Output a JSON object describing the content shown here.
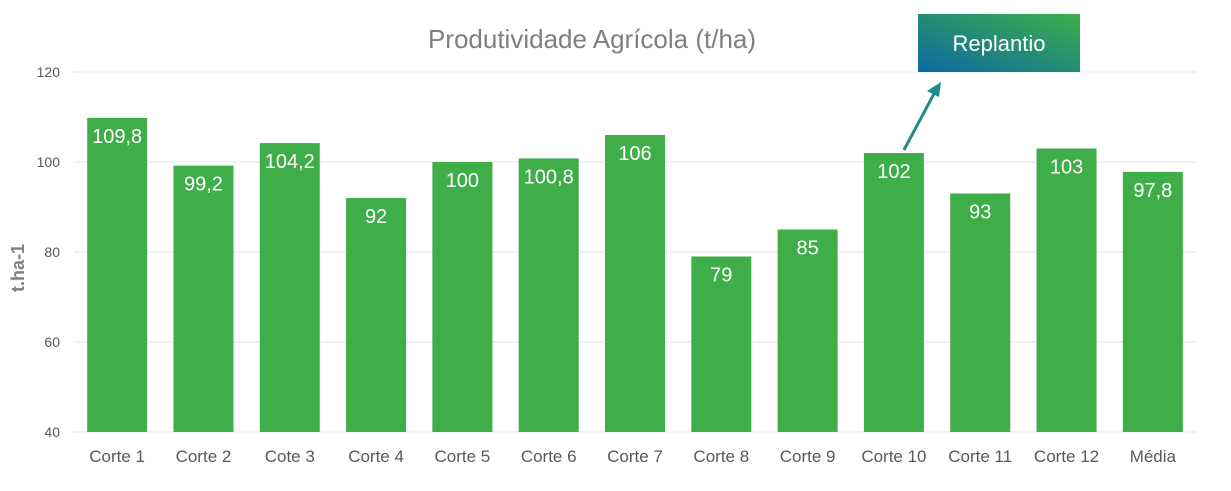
{
  "chart_data": {
    "type": "bar",
    "title": "Produtividade Agrícola (t/ha)",
    "xlabel": "",
    "ylabel": "t.ha-1",
    "ylim": [
      40,
      120
    ],
    "yticks": [
      40,
      60,
      80,
      100,
      120
    ],
    "grid": true,
    "legend": "none",
    "categories": [
      "Corte 1",
      "Corte 2",
      "Cote 3",
      "Corte 4",
      "Corte 5",
      "Corte 6",
      "Corte 7",
      "Corte 8",
      "Corte 9",
      "Corte 10",
      "Corte 11",
      "Corte 12",
      "Média"
    ],
    "values": [
      109.8,
      99.2,
      104.2,
      92,
      100,
      100.8,
      106,
      79,
      85,
      102,
      93,
      103,
      97.8
    ],
    "data_labels": [
      "109,8",
      "99,2",
      "104,2",
      "92",
      "100",
      "100,8",
      "106",
      "79",
      "85",
      "102",
      "93",
      "103",
      "97,8"
    ],
    "bar_color": "#3fae49",
    "annotation": {
      "text": "Replantio",
      "target_category": "Corte 10",
      "color_start": "#0b6aa2",
      "color_end": "#3fae49",
      "arrow_color": "#1f8a8a"
    }
  }
}
